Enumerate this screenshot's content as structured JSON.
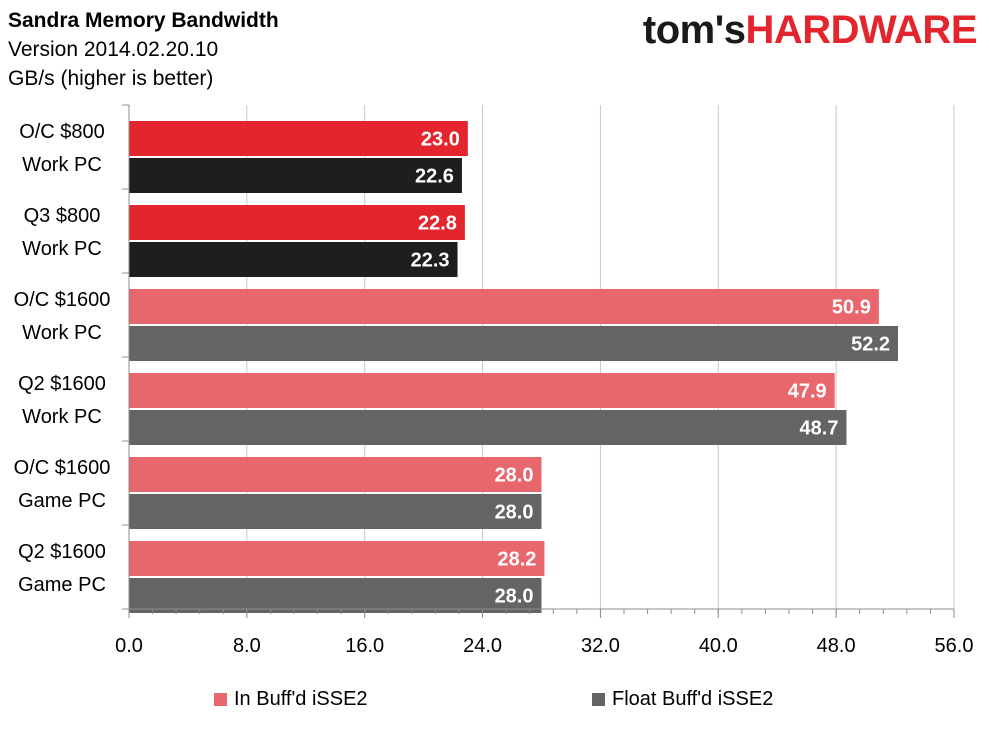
{
  "header": {
    "title": "Sandra Memory Bandwidth",
    "version": "Version 2014.02.20.10",
    "unit": "GB/s (higher is better)"
  },
  "logo": {
    "part1": "tom's",
    "part2": "HARDWARE"
  },
  "colors": {
    "series1_dark": "#e3262e",
    "series1_light": "#e8676d",
    "series2_dark": "#1e1e1e",
    "series2_light": "#656363",
    "grid": "#c8c8c8",
    "axis": "#8c8c8c",
    "logo_red": "#e3262e"
  },
  "legend": [
    {
      "label": "In Buff'd iSSE2",
      "color": "#e8676d"
    },
    {
      "label": "Float Buff'd iSSE2",
      "color": "#656363"
    }
  ],
  "chart_data": {
    "type": "bar",
    "orientation": "horizontal",
    "title": "Sandra Memory Bandwidth",
    "subtitle": "Version 2014.02.20.10",
    "unit_label": "GB/s (higher is better)",
    "categories": [
      [
        "O/C $800",
        "Work PC"
      ],
      [
        "Q3 $800",
        "Work PC"
      ],
      [
        "O/C $1600",
        "Work PC"
      ],
      [
        "Q2 $1600",
        "Work PC"
      ],
      [
        "O/C $1600",
        "Game PC"
      ],
      [
        "Q2 $1600",
        "Game PC"
      ]
    ],
    "series": [
      {
        "name": "In Buff'd iSSE2",
        "values": [
          23.0,
          22.8,
          50.9,
          47.9,
          28.0,
          28.2
        ]
      },
      {
        "name": "Float Buff'd iSSE2",
        "values": [
          22.6,
          22.3,
          52.2,
          48.7,
          28.0,
          28.0
        ]
      }
    ],
    "bar_color_scheme": [
      "dark",
      "dark",
      "light",
      "light",
      "light",
      "light"
    ],
    "xlim": [
      0,
      56
    ],
    "xticks": [
      "0.0",
      "8.0",
      "16.0",
      "24.0",
      "32.0",
      "40.0",
      "48.0",
      "56.0"
    ],
    "minor_tick_step": 1.6,
    "grid": true,
    "legend_position": "bottom"
  }
}
